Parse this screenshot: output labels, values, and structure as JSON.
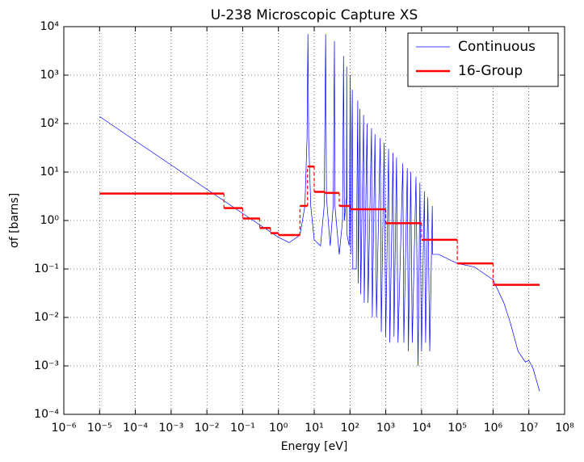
{
  "chart_data": {
    "type": "line",
    "title": "U-238 Microscopic Capture XS",
    "x_label": "Energy [eV]",
    "y_label": "σf [barns]",
    "log_x": true,
    "log_y": true,
    "grid": true,
    "legend": "upper right",
    "xlim": [
      1e-06,
      100000000.0
    ],
    "ylim": [
      0.0001,
      10000.0
    ],
    "xticks": [
      {
        "value": 1e-06,
        "label": "10⁻⁶"
      },
      {
        "value": 1e-05,
        "label": "10⁻⁵"
      },
      {
        "value": 0.0001,
        "label": "10⁻⁴"
      },
      {
        "value": 0.001,
        "label": "10⁻³"
      },
      {
        "value": 0.01,
        "label": "10⁻²"
      },
      {
        "value": 0.1,
        "label": "10⁻¹"
      },
      {
        "value": 1,
        "label": "10⁰"
      },
      {
        "value": 10,
        "label": "10¹"
      },
      {
        "value": 100,
        "label": "10²"
      },
      {
        "value": 1000,
        "label": "10³"
      },
      {
        "value": 10000,
        "label": "10⁴"
      },
      {
        "value": 100000,
        "label": "10⁵"
      },
      {
        "value": 1000000,
        "label": "10⁶"
      },
      {
        "value": 10000000,
        "label": "10⁷"
      },
      {
        "value": 100000000,
        "label": "10⁸"
      }
    ],
    "yticks": [
      {
        "value": 0.0001,
        "label": "10⁻⁴"
      },
      {
        "value": 0.001,
        "label": "10⁻³"
      },
      {
        "value": 0.01,
        "label": "10⁻²"
      },
      {
        "value": 0.1,
        "label": "10⁻¹"
      },
      {
        "value": 1,
        "label": "10⁰"
      },
      {
        "value": 10,
        "label": "10¹"
      },
      {
        "value": 100,
        "label": "10²"
      },
      {
        "value": 1000,
        "label": "10³"
      },
      {
        "value": 10000,
        "label": "10⁴"
      }
    ],
    "series": [
      {
        "name": "Continuous",
        "color": "#0000ff",
        "x": [
          1e-05,
          0.0001,
          0.001,
          0.01,
          0.1,
          1,
          2,
          4,
          5.5,
          6.3,
          6.67,
          7,
          8,
          10,
          15,
          19,
          20.9,
          22,
          28,
          34,
          36.7,
          38,
          50,
          62,
          66,
          70,
          80,
          81,
          83,
          95,
          102,
          105,
          116,
          120,
          150,
          165,
          170,
          190,
          200,
          240,
          250,
          300,
          320,
          400,
          420,
          500,
          550,
          700,
          750,
          900,
          1000,
          1200,
          1300,
          1600,
          1700,
          2000,
          2200,
          3000,
          3200,
          4000,
          4300,
          5000,
          5500,
          7000,
          8000,
          9000,
          10000,
          12000,
          13000,
          15000,
          17000,
          20000,
          20500,
          30000,
          100000,
          300000,
          1000000,
          2000000,
          3000000,
          5000000,
          8000000,
          10000000,
          13000000,
          20000000
        ],
        "values": [
          140,
          44,
          14,
          4.4,
          1.4,
          0.45,
          0.35,
          0.5,
          2,
          50,
          7000,
          50,
          2,
          0.4,
          0.3,
          2,
          7000,
          3,
          0.3,
          2,
          5000,
          2,
          0.2,
          1,
          2500,
          1,
          3,
          1500,
          0.5,
          0.3,
          1000,
          0.2,
          500,
          0.1,
          0.1,
          300,
          0.05,
          200,
          0.03,
          150,
          0.02,
          100,
          0.02,
          80,
          0.01,
          60,
          0.01,
          50,
          0.005,
          40,
          0.004,
          30,
          0.003,
          25,
          0.004,
          20,
          0.003,
          15,
          0.003,
          12,
          0.002,
          10,
          0.003,
          8,
          0.001,
          6,
          0.002,
          4,
          0.003,
          3,
          0.002,
          2,
          0.2,
          0.2,
          0.13,
          0.11,
          0.06,
          0.02,
          0.008,
          0.002,
          0.0012,
          0.0013,
          0.0009,
          0.0003
        ]
      },
      {
        "name": "16-Group",
        "color": "#ff0000",
        "bins": [
          1e-05,
          0.03,
          0.1,
          0.3,
          0.6,
          1,
          4,
          6.5,
          10,
          20,
          50,
          100,
          1000,
          10000,
          100000,
          1000000,
          20000000
        ],
        "values": [
          3.6,
          1.8,
          1.1,
          0.7,
          0.55,
          0.5,
          2.0,
          13,
          3.9,
          3.7,
          2.0,
          1.7,
          0.88,
          0.4,
          0.13,
          0.047
        ]
      }
    ]
  }
}
